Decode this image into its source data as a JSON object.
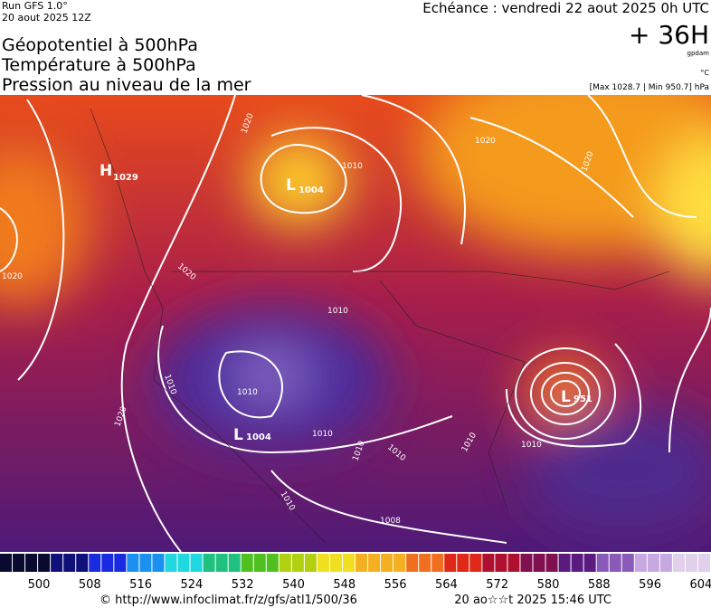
{
  "header": {
    "run": "Run GFS 1.0°",
    "run_date": "20 aout 2025 12Z",
    "titles": [
      "Géopotentiel à 500hPa",
      "Température à 500hPa",
      "Pression au niveau de la mer"
    ],
    "forecast": "Echéance : vendredi 22 aout 2025 0h UTC",
    "lead": "+ 36H",
    "unit": "gpdam",
    "temp_unit": "°C",
    "extremes": "[Max 1028.7 | Min 950.7] hPa"
  },
  "map": {
    "centers": [
      {
        "letter": "H",
        "value": "1029"
      },
      {
        "letter": "L",
        "value": "1004"
      },
      {
        "letter": "L",
        "value": "1004"
      },
      {
        "letter": "L",
        "value": "951"
      }
    ],
    "isobar_labels": [
      "1020",
      "1020",
      "1020",
      "1010",
      "1020",
      "1010",
      "1010",
      "1010",
      "1020",
      "1010",
      "1010",
      "1010",
      "1010",
      "1010",
      "1010",
      "1008",
      "1020"
    ]
  },
  "scale": {
    "labels": [
      500,
      508,
      516,
      524,
      532,
      540,
      548,
      556,
      564,
      572,
      580,
      588,
      596,
      604
    ]
  },
  "footer": {
    "url": "© http://www.infoclimat.fr/z/gfs/atl1/500/36",
    "timestamp": "20 ao☆☆t 2025 15:46 UTC"
  }
}
